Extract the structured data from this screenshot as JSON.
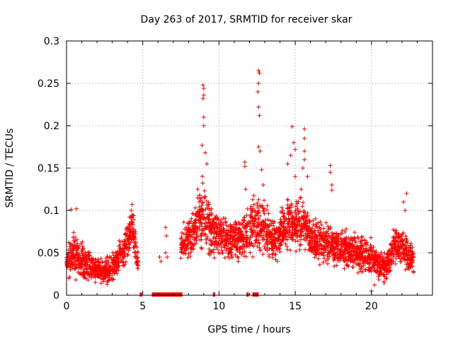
{
  "chart_data": {
    "type": "scatter",
    "title": "Day 263 of 2017, SRMTID for receiver skar",
    "xlabel": "GPS time / hours",
    "ylabel": "SRMTID / TECUs",
    "xlim": [
      0,
      24
    ],
    "ylim": [
      0,
      0.3
    ],
    "xticks": [
      0,
      5,
      10,
      15,
      20
    ],
    "yticks": [
      0,
      0.05,
      0.1,
      0.15,
      0.2,
      0.25,
      0.3
    ],
    "xtick_labels": [
      "0",
      "5",
      "10",
      "15",
      "20"
    ],
    "ytick_labels": [
      "0",
      "0.05",
      "0.1",
      "0.15",
      "0.2",
      "0.25",
      "0.3"
    ],
    "grid": true,
    "marker": "+",
    "color": "#ff0000",
    "series": [
      {
        "name": "SRMTID",
        "envelope": [
          {
            "x": 0.0,
            "center": 0.042,
            "spread": 0.018
          },
          {
            "x": 0.5,
            "center": 0.048,
            "spread": 0.022
          },
          {
            "x": 1.0,
            "center": 0.042,
            "spread": 0.018
          },
          {
            "x": 1.5,
            "center": 0.035,
            "spread": 0.015
          },
          {
            "x": 2.0,
            "center": 0.03,
            "spread": 0.012
          },
          {
            "x": 2.5,
            "center": 0.027,
            "spread": 0.012
          },
          {
            "x": 3.0,
            "center": 0.033,
            "spread": 0.015
          },
          {
            "x": 3.5,
            "center": 0.045,
            "spread": 0.015
          },
          {
            "x": 4.0,
            "center": 0.065,
            "spread": 0.018
          },
          {
            "x": 4.3,
            "center": 0.08,
            "spread": 0.02
          },
          {
            "x": 4.5,
            "center": 0.06,
            "spread": 0.02
          },
          {
            "x": 4.7,
            "center": 0.04,
            "spread": 0.01
          },
          {
            "x": 7.5,
            "center": 0.06,
            "spread": 0.015
          },
          {
            "x": 8.0,
            "center": 0.065,
            "spread": 0.02
          },
          {
            "x": 8.5,
            "center": 0.08,
            "spread": 0.025
          },
          {
            "x": 9.0,
            "center": 0.1,
            "spread": 0.035
          },
          {
            "x": 9.5,
            "center": 0.075,
            "spread": 0.025
          },
          {
            "x": 10.0,
            "center": 0.07,
            "spread": 0.02
          },
          {
            "x": 11.0,
            "center": 0.065,
            "spread": 0.02
          },
          {
            "x": 12.0,
            "center": 0.075,
            "spread": 0.025
          },
          {
            "x": 12.5,
            "center": 0.085,
            "spread": 0.03
          },
          {
            "x": 13.0,
            "center": 0.08,
            "spread": 0.03
          },
          {
            "x": 13.5,
            "center": 0.065,
            "spread": 0.02
          },
          {
            "x": 14.0,
            "center": 0.07,
            "spread": 0.02
          },
          {
            "x": 14.5,
            "center": 0.09,
            "spread": 0.03
          },
          {
            "x": 15.0,
            "center": 0.08,
            "spread": 0.025
          },
          {
            "x": 15.5,
            "center": 0.085,
            "spread": 0.025
          },
          {
            "x": 16.0,
            "center": 0.07,
            "spread": 0.02
          },
          {
            "x": 17.0,
            "center": 0.06,
            "spread": 0.02
          },
          {
            "x": 18.0,
            "center": 0.055,
            "spread": 0.018
          },
          {
            "x": 19.0,
            "center": 0.05,
            "spread": 0.018
          },
          {
            "x": 20.0,
            "center": 0.045,
            "spread": 0.018
          },
          {
            "x": 20.5,
            "center": 0.035,
            "spread": 0.015
          },
          {
            "x": 21.0,
            "center": 0.035,
            "spread": 0.015
          },
          {
            "x": 21.5,
            "center": 0.055,
            "spread": 0.02
          },
          {
            "x": 22.0,
            "center": 0.06,
            "spread": 0.02
          },
          {
            "x": 22.5,
            "center": 0.045,
            "spread": 0.015
          },
          {
            "x": 22.8,
            "center": 0.04,
            "spread": 0.012
          }
        ],
        "spikes": [
          {
            "x": 0.3,
            "y": 0.101
          },
          {
            "x": 0.65,
            "y": 0.102
          },
          {
            "x": 4.3,
            "y": 0.107
          },
          {
            "x": 4.25,
            "y": 0.1
          },
          {
            "x": 6.5,
            "y": 0.08
          },
          {
            "x": 8.95,
            "y": 0.248
          },
          {
            "x": 9.0,
            "y": 0.244
          },
          {
            "x": 9.0,
            "y": 0.236
          },
          {
            "x": 8.95,
            "y": 0.232
          },
          {
            "x": 9.0,
            "y": 0.21
          },
          {
            "x": 9.0,
            "y": 0.2
          },
          {
            "x": 8.9,
            "y": 0.177
          },
          {
            "x": 9.1,
            "y": 0.168
          },
          {
            "x": 9.2,
            "y": 0.155
          },
          {
            "x": 8.6,
            "y": 0.125
          },
          {
            "x": 8.6,
            "y": 0.115
          },
          {
            "x": 11.7,
            "y": 0.157
          },
          {
            "x": 11.7,
            "y": 0.152
          },
          {
            "x": 11.75,
            "y": 0.125
          },
          {
            "x": 12.6,
            "y": 0.265
          },
          {
            "x": 12.65,
            "y": 0.262
          },
          {
            "x": 12.6,
            "y": 0.25
          },
          {
            "x": 12.55,
            "y": 0.24
          },
          {
            "x": 12.6,
            "y": 0.222
          },
          {
            "x": 12.65,
            "y": 0.212
          },
          {
            "x": 12.6,
            "y": 0.175
          },
          {
            "x": 12.7,
            "y": 0.17
          },
          {
            "x": 12.8,
            "y": 0.148
          },
          {
            "x": 12.9,
            "y": 0.13
          },
          {
            "x": 14.5,
            "y": 0.155
          },
          {
            "x": 14.8,
            "y": 0.199
          },
          {
            "x": 14.9,
            "y": 0.18
          },
          {
            "x": 15.0,
            "y": 0.172
          },
          {
            "x": 14.7,
            "y": 0.165
          },
          {
            "x": 15.0,
            "y": 0.14
          },
          {
            "x": 15.4,
            "y": 0.125
          },
          {
            "x": 15.6,
            "y": 0.196
          },
          {
            "x": 15.6,
            "y": 0.185
          },
          {
            "x": 15.6,
            "y": 0.17
          },
          {
            "x": 15.6,
            "y": 0.16
          },
          {
            "x": 15.5,
            "y": 0.15
          },
          {
            "x": 15.8,
            "y": 0.14
          },
          {
            "x": 17.3,
            "y": 0.153
          },
          {
            "x": 17.3,
            "y": 0.145
          },
          {
            "x": 17.4,
            "y": 0.13
          },
          {
            "x": 17.4,
            "y": 0.124
          },
          {
            "x": 22.3,
            "y": 0.12
          },
          {
            "x": 22.1,
            "y": 0.11
          },
          {
            "x": 22.2,
            "y": 0.1
          },
          {
            "x": 20.0,
            "y": 0.005
          },
          {
            "x": 20.2,
            "y": 0.012
          }
        ],
        "zero_markers": [
          {
            "x_start": 4.8,
            "x_end": 4.95
          },
          {
            "x_start": 5.6,
            "x_end": 7.6
          },
          {
            "x_start": 9.6,
            "x_end": 9.75
          },
          {
            "x_start": 11.8,
            "x_end": 11.95
          },
          {
            "x_start": 12.2,
            "x_end": 12.6
          }
        ]
      }
    ]
  }
}
